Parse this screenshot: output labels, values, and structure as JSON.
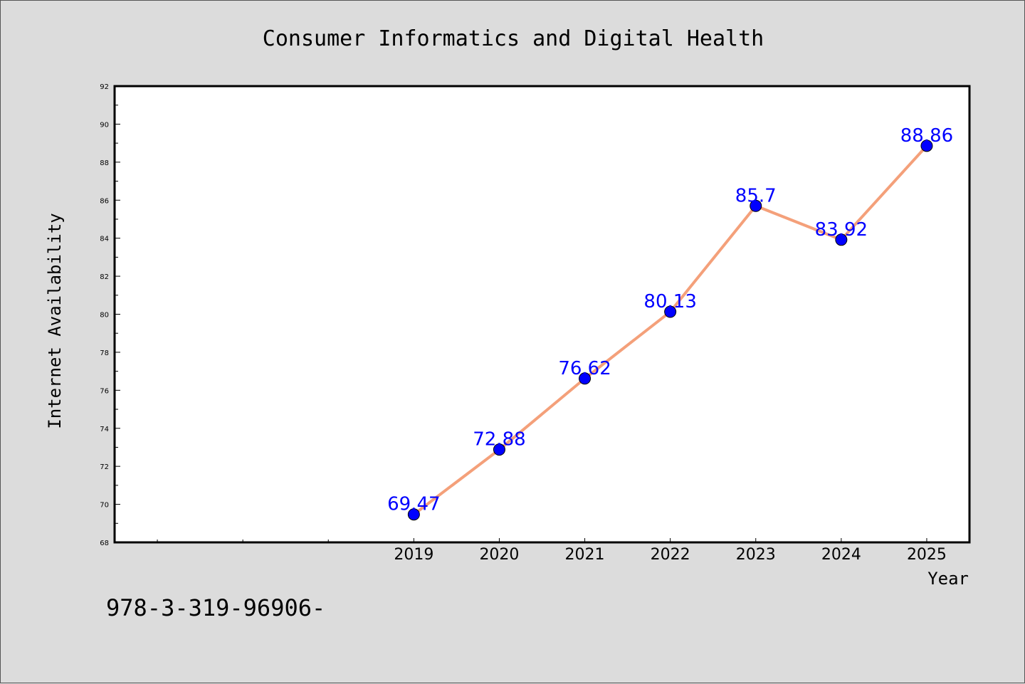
{
  "chart_data": {
    "type": "line",
    "title": "Consumer Informatics and Digital Health",
    "xlabel": "Year",
    "ylabel": "Internet Availability",
    "categories": [
      "2019",
      "2020",
      "2021",
      "2022",
      "2023",
      "2024",
      "2025"
    ],
    "series": [
      {
        "values": [
          69.47,
          72.88,
          76.62,
          80.13,
          85.7,
          83.92,
          88.86
        ],
        "data_labels": [
          "69.47",
          "72.88",
          "76.62",
          "80.13",
          "85.7",
          "83.92",
          "88.86"
        ],
        "line_color": "#f4a07a",
        "marker_color": "#0000ff"
      }
    ],
    "x_positions": [
      2019,
      2020,
      2021,
      2022,
      2023,
      2024,
      2025
    ],
    "xlim": [
      2015.5,
      2025.5
    ],
    "ylim": [
      68,
      92
    ],
    "yticks": [
      "68",
      "70",
      "72",
      "74",
      "76",
      "78",
      "80",
      "82",
      "84",
      "86",
      "88",
      "90",
      "92"
    ],
    "grid": false,
    "legend": "none"
  },
  "footnote": "978-3-319-96906-",
  "colors": {
    "background": "#dcdcdc",
    "plot_background": "#ffffff",
    "data_label": "#0000ff"
  }
}
